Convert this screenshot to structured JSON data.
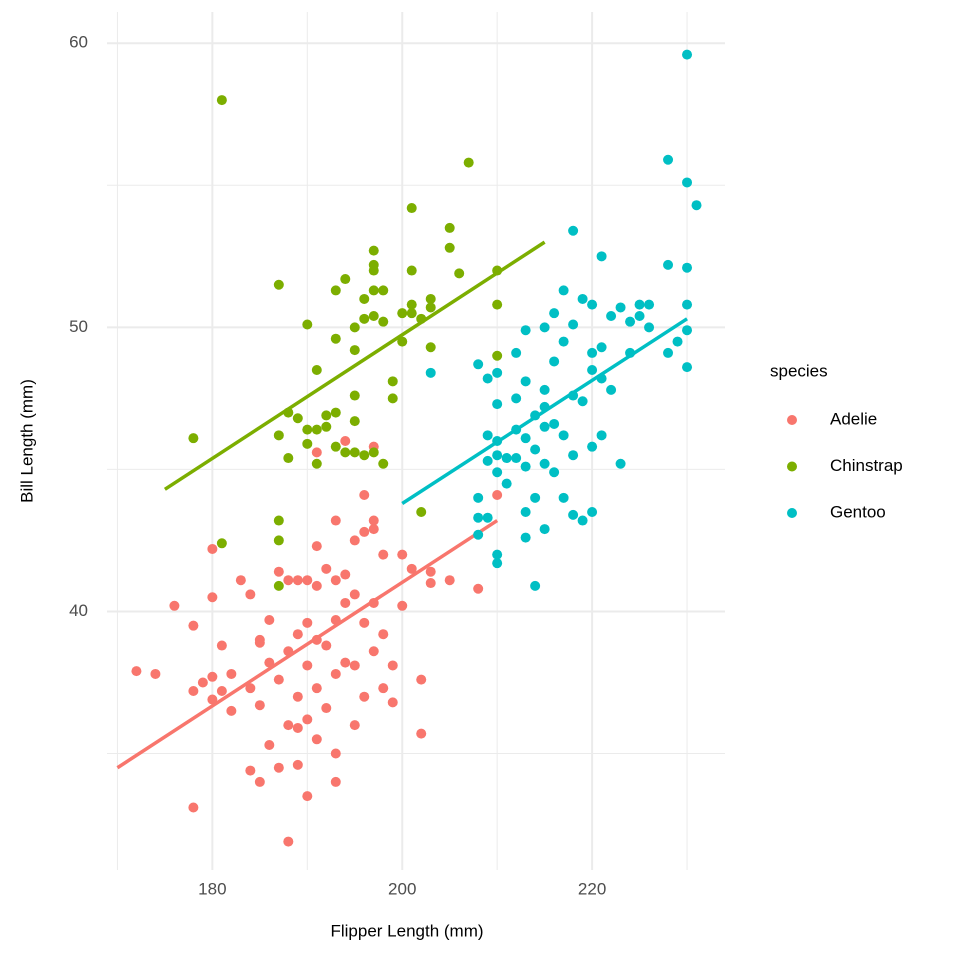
{
  "chart_data": {
    "type": "scatter",
    "x_label": "Flipper Length (mm)",
    "y_label": "Bill Length (mm)",
    "legend_title": "species",
    "legend_position": "right",
    "grid": true,
    "xlim": [
      168.9,
      234
    ],
    "ylim": [
      30.9,
      61.1
    ],
    "xticks": [
      180,
      200,
      220
    ],
    "yticks": [
      40,
      50,
      60
    ],
    "xminor": [
      170,
      190,
      210,
      230
    ],
    "yminor": [
      35,
      45,
      55
    ],
    "series": [
      {
        "name": "Adelie",
        "color": "#F8766D",
        "x": [
          172,
          174,
          176,
          178,
          178,
          178,
          179,
          180,
          180,
          180,
          180,
          181,
          182,
          182,
          183,
          184,
          184,
          184,
          185,
          185,
          185,
          186,
          186,
          186,
          187,
          187,
          187,
          188,
          188,
          188,
          188,
          189,
          189,
          189,
          189,
          190,
          190,
          190,
          190,
          190,
          191,
          191,
          191,
          191,
          191,
          192,
          192,
          192,
          193,
          193,
          193,
          193,
          193,
          194,
          194,
          194,
          195,
          195,
          195,
          195,
          196,
          196,
          196,
          197,
          197,
          197,
          197,
          198,
          198,
          198,
          199,
          199,
          200,
          200,
          201,
          202,
          202,
          203,
          203,
          205,
          208,
          210,
          196,
          191,
          194,
          197,
          193,
          181,
          185,
          189
        ],
        "y": [
          37.9,
          37.8,
          40.2,
          39.5,
          37.2,
          33.1,
          37.5,
          40.5,
          37.7,
          36.9,
          42.2,
          38.8,
          36.5,
          37.8,
          41.1,
          40.6,
          37.3,
          34.4,
          39.0,
          36.7,
          34.0,
          39.7,
          38.2,
          35.3,
          41.4,
          37.6,
          34.5,
          41.1,
          38.6,
          36.0,
          31.9,
          41.1,
          39.2,
          37.0,
          34.6,
          41.1,
          39.6,
          38.1,
          36.2,
          33.5,
          42.3,
          40.9,
          39.0,
          37.3,
          35.5,
          41.5,
          38.8,
          36.6,
          41.1,
          39.7,
          37.8,
          35.0,
          34.0,
          41.3,
          40.3,
          38.2,
          42.5,
          40.6,
          38.1,
          36.0,
          42.8,
          39.6,
          37.0,
          43.2,
          42.9,
          40.3,
          38.6,
          42.0,
          39.2,
          37.3,
          38.1,
          36.8,
          40.2,
          42.0,
          41.5,
          37.6,
          35.7,
          41.4,
          41.0,
          41.1,
          40.8,
          44.1,
          44.1,
          45.6,
          46.0,
          45.8,
          43.2,
          37.2,
          38.9,
          35.9
        ],
        "trend": {
          "x": [
            170,
            210
          ],
          "y": [
            34.5,
            43.2
          ]
        }
      },
      {
        "name": "Chinstrap",
        "color": "#7CAE00",
        "x": [
          178,
          181,
          181,
          187,
          187,
          187,
          187,
          187,
          188,
          188,
          189,
          190,
          190,
          190,
          191,
          191,
          191,
          192,
          192,
          193,
          193,
          193,
          193,
          194,
          194,
          195,
          195,
          195,
          195,
          195,
          196,
          196,
          196,
          197,
          197,
          197,
          197,
          197,
          197,
          198,
          198,
          198,
          199,
          199,
          200,
          200,
          201,
          201,
          201,
          201,
          202,
          202,
          203,
          203,
          203,
          205,
          205,
          206,
          207,
          210,
          210,
          210
        ],
        "y": [
          46.1,
          58.0,
          42.4,
          51.5,
          46.2,
          43.2,
          42.5,
          40.9,
          45.4,
          47.0,
          46.8,
          50.1,
          46.4,
          45.9,
          48.5,
          46.4,
          45.2,
          46.9,
          46.5,
          51.3,
          49.6,
          47.0,
          45.8,
          51.7,
          45.6,
          50.0,
          49.2,
          47.6,
          46.7,
          45.6,
          51.0,
          50.3,
          45.5,
          52.7,
          52.2,
          52.0,
          51.3,
          50.4,
          45.6,
          51.3,
          50.2,
          45.2,
          48.1,
          47.5,
          50.5,
          49.5,
          52.0,
          50.8,
          50.5,
          54.2,
          50.3,
          43.5,
          51.0,
          50.7,
          49.3,
          53.5,
          52.8,
          51.9,
          55.8,
          52.0,
          50.8,
          49.0
        ],
        "trend": {
          "x": [
            175,
            215
          ],
          "y": [
            44.3,
            53.0
          ]
        }
      },
      {
        "name": "Gentoo",
        "color": "#00BFC4",
        "x": [
          203,
          208,
          208,
          208,
          208,
          209,
          209,
          209,
          209,
          210,
          210,
          210,
          210,
          210,
          210,
          210,
          211,
          211,
          212,
          212,
          212,
          212,
          213,
          213,
          213,
          213,
          213,
          213,
          214,
          214,
          214,
          214,
          215,
          215,
          215,
          215,
          215,
          215,
          216,
          216,
          216,
          216,
          217,
          217,
          217,
          217,
          218,
          218,
          218,
          218,
          218,
          219,
          219,
          219,
          220,
          220,
          220,
          220,
          220,
          221,
          221,
          221,
          221,
          222,
          222,
          223,
          223,
          224,
          224,
          225,
          225,
          226,
          226,
          228,
          228,
          228,
          229,
          230,
          230,
          230,
          230,
          230,
          230,
          231
        ],
        "y": [
          48.4,
          48.7,
          44.0,
          43.3,
          42.7,
          48.2,
          46.2,
          45.3,
          43.3,
          48.4,
          47.3,
          46.0,
          45.5,
          44.9,
          42.0,
          41.7,
          45.4,
          44.5,
          49.1,
          47.5,
          46.4,
          45.4,
          49.9,
          48.1,
          46.1,
          45.1,
          43.5,
          42.6,
          46.9,
          45.7,
          44.0,
          40.9,
          50.0,
          47.8,
          47.2,
          46.5,
          45.2,
          42.9,
          50.5,
          48.8,
          46.6,
          44.9,
          51.3,
          49.5,
          46.2,
          44.0,
          53.4,
          50.1,
          47.6,
          45.5,
          43.4,
          51.0,
          47.4,
          43.2,
          50.8,
          49.1,
          48.5,
          45.8,
          43.5,
          52.5,
          49.3,
          48.2,
          46.2,
          50.4,
          47.8,
          50.7,
          45.2,
          50.2,
          49.1,
          50.8,
          50.4,
          50.0,
          50.8,
          55.9,
          52.2,
          49.1,
          49.5,
          59.6,
          55.1,
          52.1,
          50.8,
          49.9,
          48.6,
          54.3
        ],
        "trend": {
          "x": [
            200,
            230
          ],
          "y": [
            43.8,
            50.3
          ]
        }
      }
    ]
  }
}
